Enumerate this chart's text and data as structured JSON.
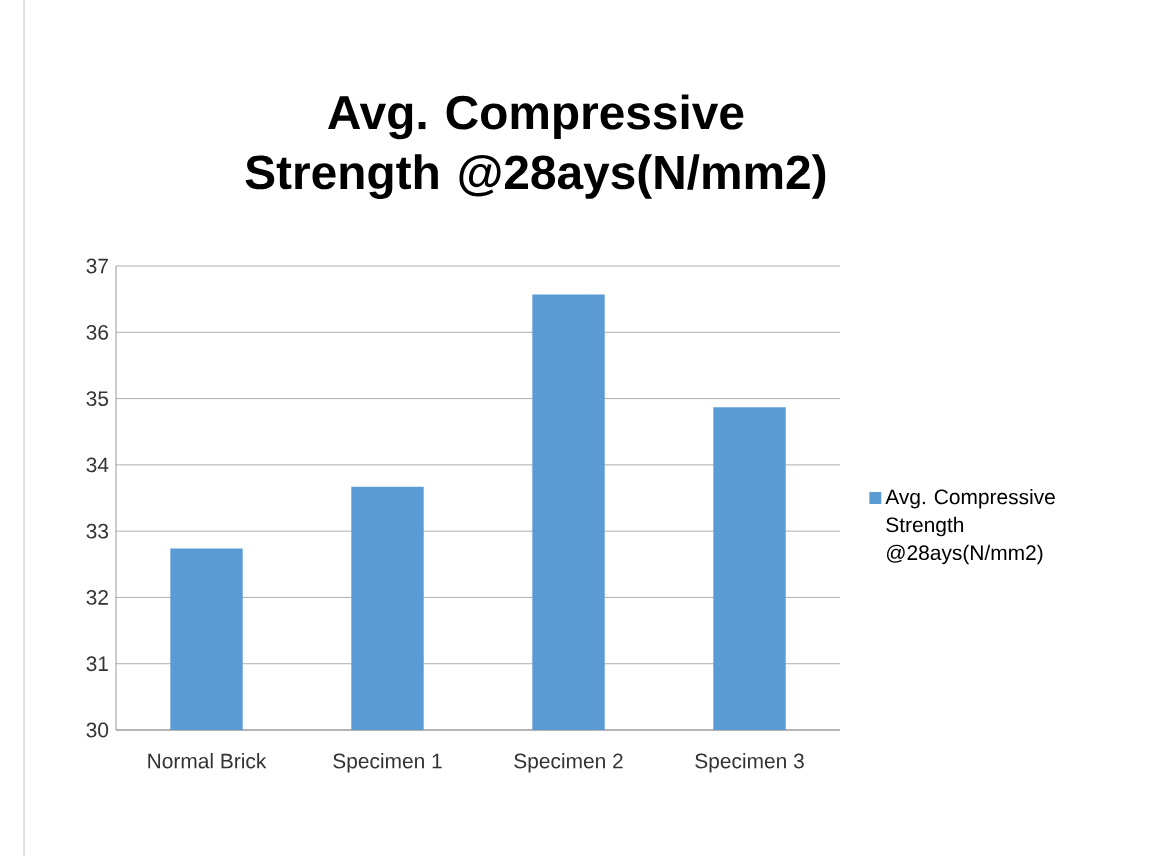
{
  "chart_data": {
    "type": "bar",
    "title": "Avg. Compressive Strength @28ays(N/mm2)",
    "categories": [
      "Normal Brick",
      "Specimen 1",
      "Specimen 2",
      "Specimen 3"
    ],
    "series": [
      {
        "name": "Avg. Compressive Strength @28ays(N/mm2)",
        "color": "#5b9bd5",
        "values": [
          32.74,
          33.67,
          36.57,
          34.87
        ]
      }
    ],
    "ylim": [
      30,
      37
    ],
    "yticks": [
      30,
      31,
      32,
      33,
      34,
      35,
      36,
      37
    ],
    "grid": "y",
    "legend": "right"
  }
}
